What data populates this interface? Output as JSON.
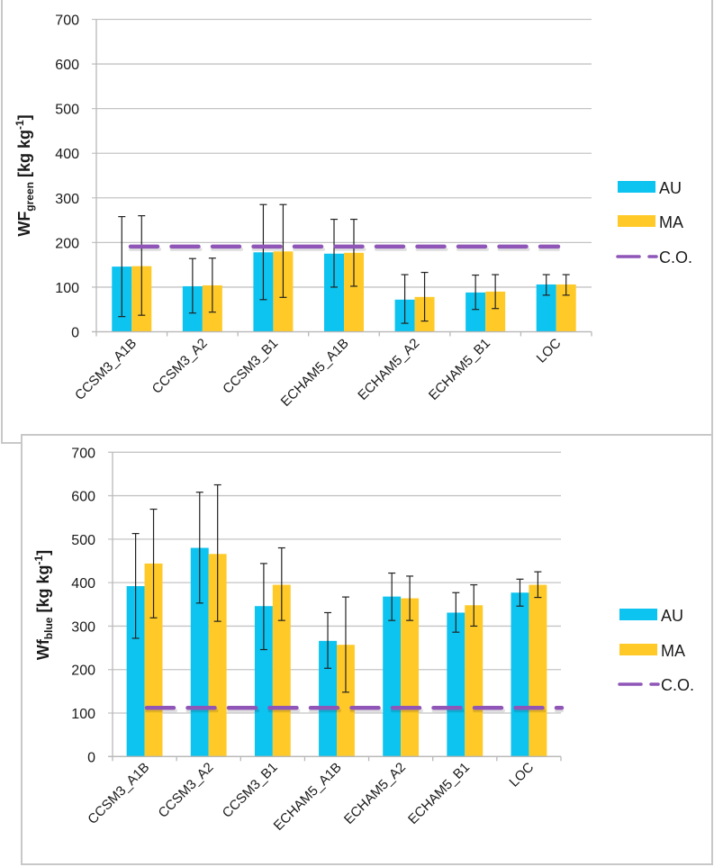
{
  "chart_data": [
    {
      "type": "bar",
      "title": "",
      "ylabel_main": "WF",
      "ylabel_sub": "green",
      "ylabel_unit_pre": " [kg kg",
      "ylabel_unit_sup": "-1",
      "ylabel_unit_post": "]",
      "xlabel": "",
      "ylim": [
        0,
        700
      ],
      "yticks": [
        0,
        100,
        200,
        300,
        400,
        500,
        600,
        700
      ],
      "ytick_labels": [
        "0",
        "100",
        "200",
        "300",
        "400",
        "500",
        "600",
        "700"
      ],
      "grid": true,
      "legend_position": "right",
      "categories": [
        "CCSM3_A1B",
        "CCSM3_A2",
        "CCSM3_B1",
        "ECHAM5_A1B",
        "ECHAM5_A2",
        "ECHAM5_B1",
        "LOC"
      ],
      "series": [
        {
          "name": "AU",
          "color": "#0DC3EF",
          "values": [
            146,
            102,
            178,
            175,
            72,
            88,
            106
          ],
          "error_high": [
            258,
            164,
            285,
            252,
            128,
            127,
            128
          ],
          "error_low": [
            34,
            42,
            72,
            100,
            19,
            50,
            82
          ]
        },
        {
          "name": "MA",
          "color": "#FFCA28",
          "values": [
            147,
            104,
            180,
            177,
            78,
            90,
            106
          ],
          "error_high": [
            260,
            165,
            285,
            252,
            133,
            128,
            128
          ],
          "error_low": [
            37,
            44,
            77,
            102,
            24,
            52,
            82
          ]
        }
      ],
      "reference_line": {
        "name": "C.O.",
        "value": 191,
        "color": "#8F56B8",
        "style": "dashed"
      },
      "legend": [
        "AU",
        "MA",
        "C.O."
      ]
    },
    {
      "type": "bar",
      "title": "",
      "ylabel_main": "Wf",
      "ylabel_sub": "blue",
      "ylabel_unit_pre": " [kg kg",
      "ylabel_unit_sup": "-1",
      "ylabel_unit_post": "]",
      "xlabel": "",
      "ylim": [
        0,
        700
      ],
      "yticks": [
        0,
        100,
        200,
        300,
        400,
        500,
        600,
        700
      ],
      "ytick_labels": [
        "0",
        "100",
        "200",
        "300",
        "400",
        "500",
        "600",
        "700"
      ],
      "grid": true,
      "legend_position": "right",
      "categories": [
        "CCSM3_A1B",
        "CCSM3_A2",
        "CCSM3_B1",
        "ECHAM5_A1B",
        "ECHAM5_A2",
        "ECHAM5_B1",
        "LOC"
      ],
      "series": [
        {
          "name": "AU",
          "color": "#0DC3EF",
          "values": [
            392,
            480,
            346,
            266,
            368,
            331,
            377
          ],
          "error_high": [
            513,
            608,
            444,
            331,
            422,
            377,
            408
          ],
          "error_low": [
            272,
            353,
            246,
            203,
            313,
            286,
            346
          ]
        },
        {
          "name": "MA",
          "color": "#FFCA28",
          "values": [
            444,
            466,
            395,
            257,
            364,
            348,
            395
          ],
          "error_high": [
            569,
            625,
            480,
            367,
            415,
            395,
            425
          ],
          "error_low": [
            319,
            311,
            313,
            148,
            313,
            300,
            366
          ]
        }
      ],
      "reference_line": {
        "name": "C.O.",
        "value": 112,
        "color": "#8F56B8",
        "style": "dashed"
      },
      "legend": [
        "AU",
        "MA",
        "C.O."
      ]
    }
  ]
}
